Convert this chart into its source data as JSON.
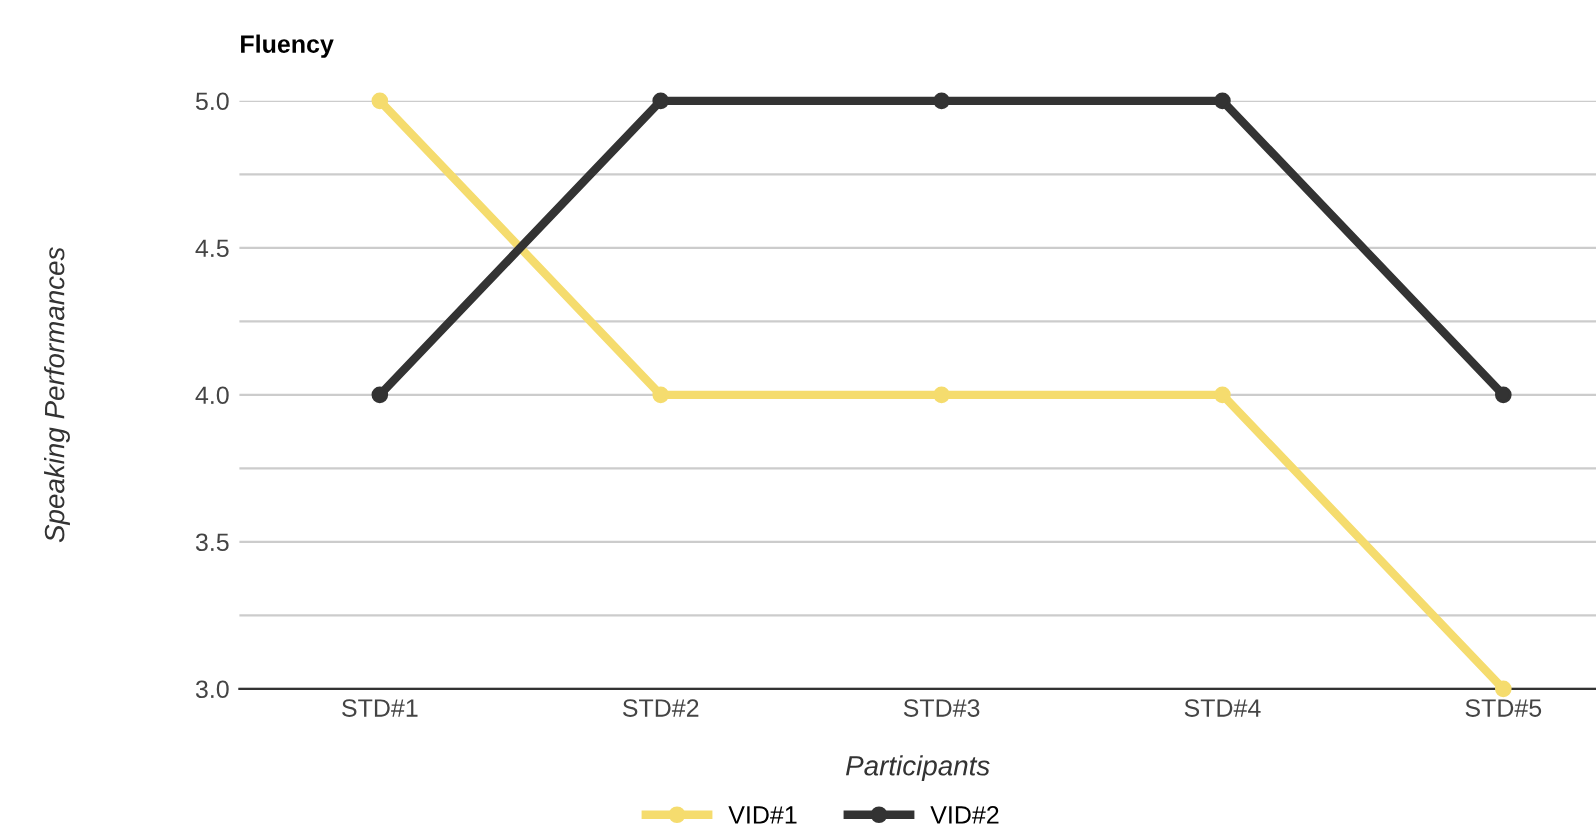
{
  "chart_data": {
    "type": "line",
    "title": "Fluency",
    "xlabel": "Participants",
    "ylabel": "Speaking Performances",
    "categories": [
      "STD#1",
      "STD#2",
      "STD#3",
      "STD#4",
      "STD#5"
    ],
    "series": [
      {
        "name": "VID#1",
        "color": "#f5dc6e",
        "values": [
          5,
          4,
          4,
          4,
          3
        ]
      },
      {
        "name": "VID#2",
        "color": "#333333",
        "values": [
          4,
          5,
          5,
          5,
          4
        ]
      }
    ],
    "ylim": [
      3,
      5
    ],
    "yticks": [
      {
        "value": 3,
        "label": "3.0"
      },
      {
        "value": 3.25,
        "label": null
      },
      {
        "value": 3.5,
        "label": "3.5"
      },
      {
        "value": 3.75,
        "label": null
      },
      {
        "value": 4,
        "label": "4.0"
      },
      {
        "value": 4.25,
        "label": null
      },
      {
        "value": 4.5,
        "label": "4.5"
      },
      {
        "value": 4.75,
        "label": null
      },
      {
        "value": 5,
        "label": "5.0"
      }
    ],
    "grid": "y",
    "legend": "bottom",
    "marker": "circle",
    "line_style": "solid"
  }
}
